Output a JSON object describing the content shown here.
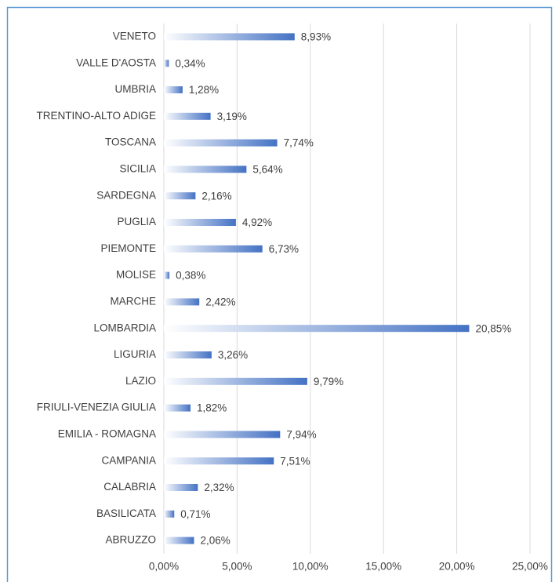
{
  "chart_data": {
    "type": "bar",
    "orientation": "horizontal",
    "categories": [
      "VENETO",
      "VALLE D'AOSTA",
      "UMBRIA",
      "TRENTINO-ALTO ADIGE",
      "TOSCANA",
      "SICILIA",
      "SARDEGNA",
      "PUGLIA",
      "PIEMONTE",
      "MOLISE",
      "MARCHE",
      "LOMBARDIA",
      "LIGURIA",
      "LAZIO",
      "FRIULI-VENEZIA GIULIA",
      "EMILIA - ROMAGNA",
      "CAMPANIA",
      "CALABRIA",
      "BASILICATA",
      "ABRUZZO"
    ],
    "values": [
      8.93,
      0.34,
      1.28,
      3.19,
      7.74,
      5.64,
      2.16,
      4.92,
      6.73,
      0.38,
      2.42,
      20.85,
      3.26,
      9.79,
      1.82,
      7.94,
      7.51,
      2.32,
      0.71,
      2.06
    ],
    "value_labels": [
      "8,93%",
      "0,34%",
      "1,28%",
      "3,19%",
      "7,74%",
      "5,64%",
      "2,16%",
      "4,92%",
      "6,73%",
      "0,38%",
      "2,42%",
      "20,85%",
      "3,26%",
      "9,79%",
      "1,82%",
      "7,94%",
      "7,51%",
      "2,32%",
      "0,71%",
      "2,06%"
    ],
    "color": "#4472c4",
    "xlim": [
      0,
      25
    ],
    "xticks": [
      {
        "value": 0,
        "label": "0,00%"
      },
      {
        "value": 5,
        "label": "5,00%"
      },
      {
        "value": 10,
        "label": "10,00%"
      },
      {
        "value": 15,
        "label": "15,00%"
      },
      {
        "value": 20,
        "label": "20,00%"
      },
      {
        "value": 25,
        "label": "25,00%"
      }
    ],
    "grid": true
  }
}
